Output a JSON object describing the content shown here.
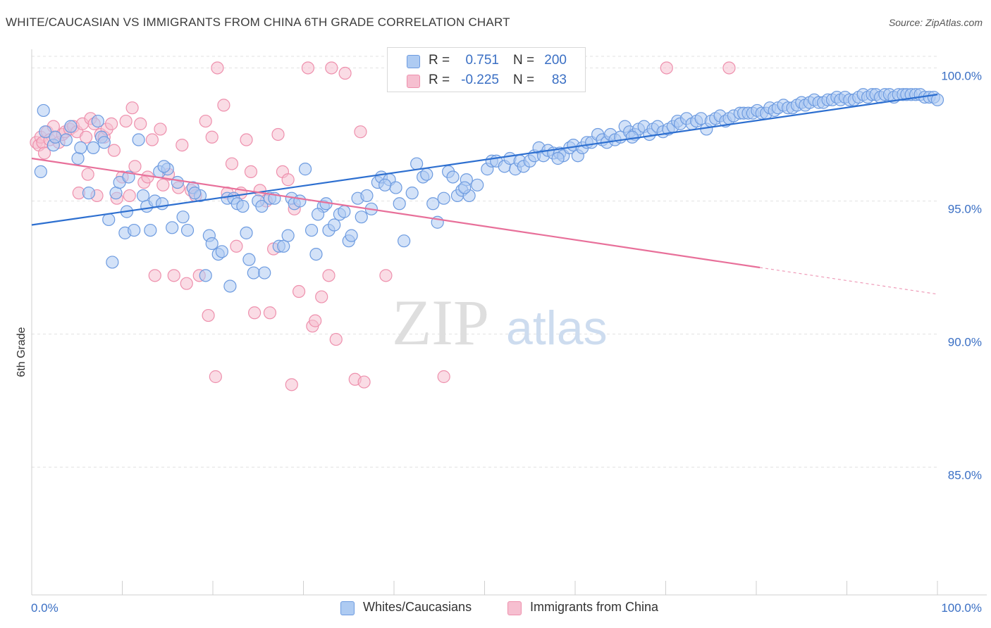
{
  "title": "WHITE/CAUCASIAN VS IMMIGRANTS FROM CHINA 6TH GRADE CORRELATION CHART",
  "source": "Source: ZipAtlas.com",
  "watermark": {
    "part1": "ZIP",
    "part2": "atlas"
  },
  "colors": {
    "blue_fill": "#aecbf2",
    "blue_stroke": "#6d9be0",
    "blue_line": "#2d6fd0",
    "pink_fill": "#f6bfd0",
    "pink_stroke": "#ee90ad",
    "pink_line": "#e8709a",
    "tick_text": "#3a6fc4"
  },
  "legend_top": {
    "rows": [
      {
        "r_label": "R =",
        "r_value": "0.751",
        "n_label": "N =",
        "n_value": "200"
      },
      {
        "r_label": "R =",
        "r_value": "-0.225",
        "n_label": "N =",
        "n_value": "83"
      }
    ]
  },
  "legend_bottom": [
    {
      "label": "Whites/Caucasians"
    },
    {
      "label": "Immigrants from China"
    }
  ],
  "chart_data": {
    "type": "scatter",
    "ylabel": "6th Grade",
    "xlabel": "",
    "xlim": [
      0,
      100
    ],
    "ylim": [
      80.2,
      100.7
    ],
    "x_tick_labels": [
      "0.0%",
      "100.0%"
    ],
    "y_ticks": [
      100,
      95,
      90,
      85
    ],
    "y_tick_labels": [
      "100.0%",
      "95.0%",
      "90.0%",
      "85.0%"
    ],
    "grid": true,
    "legend_placement": "top-center",
    "series": [
      {
        "name": "Whites/Caucasians",
        "R": 0.751,
        "N": 200,
        "trend": {
          "x": [
            0,
            100
          ],
          "y": [
            94.1,
            99.0
          ]
        },
        "points": [
          [
            1.3,
            98.4
          ],
          [
            1.0,
            96.1
          ],
          [
            1.5,
            97.6
          ],
          [
            2.4,
            97.1
          ],
          [
            2.6,
            97.4
          ],
          [
            3.8,
            97.3
          ],
          [
            4.3,
            97.8
          ],
          [
            5.1,
            96.6
          ],
          [
            5.4,
            97.0
          ],
          [
            6.3,
            95.3
          ],
          [
            6.8,
            97.0
          ],
          [
            7.3,
            98.0
          ],
          [
            7.7,
            97.4
          ],
          [
            8.0,
            97.2
          ],
          [
            8.5,
            94.3
          ],
          [
            8.9,
            92.7
          ],
          [
            9.3,
            95.3
          ],
          [
            9.7,
            95.7
          ],
          [
            10.3,
            93.8
          ],
          [
            10.7,
            95.9
          ],
          [
            11.3,
            93.9
          ],
          [
            11.8,
            97.3
          ],
          [
            12.3,
            95.2
          ],
          [
            12.7,
            94.8
          ],
          [
            13.1,
            93.9
          ],
          [
            13.6,
            95.0
          ],
          [
            14.1,
            96.1
          ],
          [
            14.4,
            94.9
          ],
          [
            15.0,
            96.2
          ],
          [
            15.5,
            94.0
          ],
          [
            16.1,
            95.7
          ],
          [
            16.7,
            94.4
          ],
          [
            17.2,
            93.9
          ],
          [
            17.8,
            95.5
          ],
          [
            18.6,
            95.2
          ],
          [
            19.2,
            92.2
          ],
          [
            19.6,
            93.7
          ],
          [
            19.9,
            93.4
          ],
          [
            20.6,
            93.0
          ],
          [
            21.0,
            93.1
          ],
          [
            21.6,
            95.1
          ],
          [
            21.9,
            91.8
          ],
          [
            22.3,
            95.1
          ],
          [
            22.7,
            94.9
          ],
          [
            23.3,
            94.8
          ],
          [
            23.7,
            93.8
          ],
          [
            24.0,
            92.8
          ],
          [
            24.5,
            92.3
          ],
          [
            25.0,
            95.0
          ],
          [
            25.4,
            94.8
          ],
          [
            25.7,
            92.3
          ],
          [
            26.3,
            95.1
          ],
          [
            26.8,
            95.1
          ],
          [
            27.3,
            93.3
          ],
          [
            27.8,
            93.3
          ],
          [
            28.3,
            93.7
          ],
          [
            28.7,
            95.1
          ],
          [
            29.0,
            94.9
          ],
          [
            29.6,
            95.0
          ],
          [
            30.2,
            96.2
          ],
          [
            30.9,
            93.9
          ],
          [
            31.4,
            93.0
          ],
          [
            32.2,
            94.8
          ],
          [
            32.5,
            94.9
          ],
          [
            32.8,
            93.9
          ],
          [
            33.4,
            94.1
          ],
          [
            34.0,
            94.5
          ],
          [
            34.5,
            94.6
          ],
          [
            35.0,
            93.5
          ],
          [
            35.3,
            93.7
          ],
          [
            36.0,
            95.1
          ],
          [
            36.4,
            94.4
          ],
          [
            37.0,
            95.2
          ],
          [
            37.5,
            94.7
          ],
          [
            38.2,
            95.7
          ],
          [
            38.6,
            95.9
          ],
          [
            39.5,
            95.8
          ],
          [
            40.2,
            95.5
          ],
          [
            40.6,
            94.9
          ],
          [
            41.1,
            93.5
          ],
          [
            42.0,
            95.3
          ],
          [
            42.5,
            96.4
          ],
          [
            43.2,
            95.9
          ],
          [
            43.6,
            96.0
          ],
          [
            44.3,
            94.9
          ],
          [
            44.8,
            94.2
          ],
          [
            45.5,
            95.1
          ],
          [
            46.0,
            96.1
          ],
          [
            46.5,
            95.9
          ],
          [
            47.0,
            95.2
          ],
          [
            47.5,
            95.4
          ],
          [
            48.0,
            95.8
          ],
          [
            48.3,
            95.2
          ],
          [
            49.2,
            95.6
          ],
          [
            50.3,
            96.2
          ],
          [
            50.8,
            96.5
          ],
          [
            51.3,
            96.5
          ],
          [
            52.2,
            96.3
          ],
          [
            52.8,
            96.6
          ],
          [
            53.4,
            96.2
          ],
          [
            53.9,
            96.5
          ],
          [
            54.3,
            96.3
          ],
          [
            55.0,
            96.5
          ],
          [
            55.5,
            96.7
          ],
          [
            56.0,
            97.0
          ],
          [
            56.5,
            96.7
          ],
          [
            57.0,
            96.9
          ],
          [
            57.6,
            96.8
          ],
          [
            58.3,
            96.8
          ],
          [
            58.7,
            96.7
          ],
          [
            59.4,
            97.0
          ],
          [
            59.8,
            97.1
          ],
          [
            60.3,
            96.7
          ],
          [
            60.8,
            97.0
          ],
          [
            61.3,
            97.2
          ],
          [
            61.8,
            97.2
          ],
          [
            62.5,
            97.5
          ],
          [
            63.0,
            97.3
          ],
          [
            63.5,
            97.2
          ],
          [
            63.9,
            97.5
          ],
          [
            64.4,
            97.3
          ],
          [
            65.0,
            97.4
          ],
          [
            65.5,
            97.8
          ],
          [
            66.0,
            97.6
          ],
          [
            66.6,
            97.5
          ],
          [
            67.0,
            97.7
          ],
          [
            67.6,
            97.8
          ],
          [
            68.2,
            97.5
          ],
          [
            68.6,
            97.7
          ],
          [
            69.1,
            97.8
          ],
          [
            69.7,
            97.6
          ],
          [
            70.3,
            97.7
          ],
          [
            70.8,
            97.8
          ],
          [
            71.3,
            98.0
          ],
          [
            71.6,
            97.9
          ],
          [
            72.3,
            98.1
          ],
          [
            72.9,
            97.9
          ],
          [
            73.4,
            98.0
          ],
          [
            73.9,
            98.1
          ],
          [
            74.5,
            97.7
          ],
          [
            75.0,
            98.0
          ],
          [
            75.5,
            98.1
          ],
          [
            76.0,
            98.2
          ],
          [
            76.6,
            98.0
          ],
          [
            77.0,
            98.1
          ],
          [
            77.5,
            98.2
          ],
          [
            78.2,
            98.3
          ],
          [
            78.6,
            98.3
          ],
          [
            79.1,
            98.3
          ],
          [
            79.6,
            98.3
          ],
          [
            80.1,
            98.4
          ],
          [
            80.6,
            98.3
          ],
          [
            81.1,
            98.3
          ],
          [
            81.5,
            98.5
          ],
          [
            82.0,
            98.4
          ],
          [
            82.4,
            98.5
          ],
          [
            83.0,
            98.6
          ],
          [
            83.5,
            98.5
          ],
          [
            84.0,
            98.5
          ],
          [
            84.5,
            98.6
          ],
          [
            85.0,
            98.7
          ],
          [
            85.4,
            98.6
          ],
          [
            85.9,
            98.7
          ],
          [
            86.4,
            98.8
          ],
          [
            86.9,
            98.7
          ],
          [
            87.4,
            98.7
          ],
          [
            87.9,
            98.8
          ],
          [
            88.4,
            98.8
          ],
          [
            88.9,
            98.9
          ],
          [
            89.3,
            98.8
          ],
          [
            89.8,
            98.9
          ],
          [
            90.3,
            98.8
          ],
          [
            90.8,
            98.8
          ],
          [
            91.3,
            98.9
          ],
          [
            91.8,
            99.0
          ],
          [
            92.3,
            98.9
          ],
          [
            92.8,
            99.0
          ],
          [
            93.2,
            99.0
          ],
          [
            93.7,
            98.9
          ],
          [
            94.2,
            99.0
          ],
          [
            94.7,
            99.0
          ],
          [
            95.2,
            98.9
          ],
          [
            95.7,
            99.0
          ],
          [
            96.2,
            99.0
          ],
          [
            96.6,
            99.0
          ],
          [
            97.1,
            99.0
          ],
          [
            97.6,
            99.0
          ],
          [
            98.1,
            99.0
          ],
          [
            98.6,
            98.9
          ],
          [
            99.1,
            98.9
          ],
          [
            99.6,
            98.9
          ],
          [
            100.0,
            98.8
          ],
          [
            10.5,
            94.6
          ],
          [
            14.6,
            96.3
          ],
          [
            18.0,
            95.3
          ],
          [
            31.6,
            94.5
          ],
          [
            39.0,
            95.6
          ],
          [
            47.8,
            95.5
          ],
          [
            58.1,
            96.6
          ],
          [
            66.3,
            97.4
          ]
        ]
      },
      {
        "name": "Immigrants from China",
        "R": -0.225,
        "N": 83,
        "trend": {
          "x": [
            0,
            80.4
          ],
          "y": [
            96.6,
            92.5
          ]
        },
        "trend_dashed": {
          "x": [
            80.4,
            100
          ],
          "y": [
            92.5,
            91.5
          ]
        },
        "points": [
          [
            0.5,
            97.2
          ],
          [
            0.8,
            97.1
          ],
          [
            1.0,
            97.4
          ],
          [
            1.2,
            97.2
          ],
          [
            1.4,
            96.8
          ],
          [
            1.7,
            97.6
          ],
          [
            2.0,
            97.3
          ],
          [
            2.4,
            97.8
          ],
          [
            2.6,
            97.4
          ],
          [
            3.0,
            97.2
          ],
          [
            3.4,
            97.5
          ],
          [
            3.7,
            97.6
          ],
          [
            4.2,
            97.7
          ],
          [
            4.6,
            97.8
          ],
          [
            5.0,
            97.6
          ],
          [
            5.2,
            95.3
          ],
          [
            5.6,
            97.9
          ],
          [
            6.0,
            97.4
          ],
          [
            6.2,
            96.0
          ],
          [
            6.5,
            98.1
          ],
          [
            6.9,
            97.9
          ],
          [
            7.2,
            95.2
          ],
          [
            7.6,
            97.5
          ],
          [
            8.0,
            97.4
          ],
          [
            8.3,
            97.7
          ],
          [
            8.8,
            97.9
          ],
          [
            9.1,
            96.9
          ],
          [
            9.4,
            95.1
          ],
          [
            10.0,
            95.9
          ],
          [
            10.4,
            98.0
          ],
          [
            10.8,
            95.2
          ],
          [
            11.1,
            98.5
          ],
          [
            11.4,
            96.3
          ],
          [
            12.0,
            97.9
          ],
          [
            12.4,
            95.7
          ],
          [
            12.8,
            95.9
          ],
          [
            13.3,
            97.3
          ],
          [
            13.6,
            92.2
          ],
          [
            14.2,
            97.7
          ],
          [
            14.5,
            95.6
          ],
          [
            15.1,
            96.0
          ],
          [
            15.7,
            92.2
          ],
          [
            16.2,
            95.5
          ],
          [
            16.6,
            97.1
          ],
          [
            17.1,
            91.9
          ],
          [
            17.6,
            95.4
          ],
          [
            18.1,
            95.2
          ],
          [
            18.5,
            92.2
          ],
          [
            19.2,
            98.0
          ],
          [
            19.5,
            90.7
          ],
          [
            19.9,
            97.4
          ],
          [
            20.3,
            88.4
          ],
          [
            20.5,
            100.0
          ],
          [
            21.2,
            98.6
          ],
          [
            21.6,
            95.3
          ],
          [
            22.1,
            96.4
          ],
          [
            22.6,
            93.3
          ],
          [
            23.1,
            95.3
          ],
          [
            23.7,
            97.3
          ],
          [
            24.2,
            96.1
          ],
          [
            24.6,
            90.8
          ],
          [
            25.2,
            95.4
          ],
          [
            25.9,
            95.0
          ],
          [
            26.3,
            90.8
          ],
          [
            26.7,
            93.2
          ],
          [
            27.2,
            97.5
          ],
          [
            27.7,
            96.1
          ],
          [
            28.3,
            95.8
          ],
          [
            28.7,
            88.1
          ],
          [
            29.0,
            94.7
          ],
          [
            29.5,
            91.6
          ],
          [
            30.5,
            100.0
          ],
          [
            31.0,
            90.3
          ],
          [
            31.3,
            90.5
          ],
          [
            32.0,
            91.4
          ],
          [
            32.8,
            92.2
          ],
          [
            33.1,
            100.0
          ],
          [
            33.6,
            89.8
          ],
          [
            34.6,
            99.8
          ],
          [
            35.7,
            88.3
          ],
          [
            36.3,
            97.6
          ],
          [
            36.7,
            88.2
          ],
          [
            39.1,
            92.2
          ]
        ],
        "extra_points": [
          [
            45.5,
            88.4
          ],
          [
            70.1,
            100.0
          ],
          [
            77.0,
            100.0
          ],
          [
            40.0,
            100.0
          ]
        ]
      }
    ]
  }
}
